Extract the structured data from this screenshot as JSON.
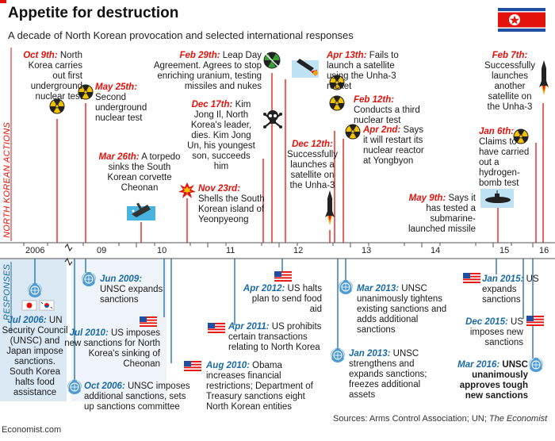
{
  "header": {
    "title": "Appetite for destruction",
    "subtitle": "A decade of North Korean provocation and selected international responses"
  },
  "side_labels": {
    "actions": "NORTH KOREAN ACTIONS",
    "responses": "RESPONSES"
  },
  "years": [
    "2006",
    "09",
    "10",
    "11",
    "12",
    "13",
    "14",
    "15",
    "16"
  ],
  "actions": [
    {
      "date": "Oct 9th:",
      "text": "North Korea carries out first underground nuclear test",
      "icon": "radiation-icon"
    },
    {
      "date": "May 25th:",
      "text": "Second underground nuclear test",
      "icon": "radiation-icon"
    },
    {
      "date": "Mar 26th:",
      "text": "A torpedo sinks the South Korean corvette Cheonan",
      "icon": "sinking-ship-icon"
    },
    {
      "date": "Nov 23rd:",
      "text": "Shells the South Korean island of Yeonpyeong",
      "icon": "explosion-icon"
    },
    {
      "date": "Feb 29th:",
      "text": "Leap Day Agreement. Agrees to stop enriching uranium, testing missiles and nukes",
      "icon": "crossed-radiation-icon"
    },
    {
      "date": "Dec 17th:",
      "text": "Kim Jong Il, North Korea's leader, dies. Kim Jong Un, his youngest son, succeeds him",
      "icon": "skull-icon"
    },
    {
      "date": "Apr 13th:",
      "text": "Fails to launch a satellite using the Unha-3 rocket",
      "icon": "failed-rocket-icon"
    },
    {
      "date": "Dec 12th:",
      "text": "Successfully launches a satellite on the Unha-3",
      "icon": "rocket-icon"
    },
    {
      "date": "Feb 12th:",
      "text": "Conducts a third nuclear test",
      "icon": "radiation-icon"
    },
    {
      "date": "Apr 2nd:",
      "text": "Says it will restart its nuclear reactor at Yongbyon",
      "icon": "radiation-icon"
    },
    {
      "date": "May 9th:",
      "text": "Says it has tested a submarine-launched missile",
      "icon": "submarine-icon"
    },
    {
      "date": "Jan 6th:",
      "text": "Claims to have carried out a hydrogen-bomb test",
      "icon": "radiation-icon"
    },
    {
      "date": "Feb 7th:",
      "text": "Successfully launches another satellite on the Unha-3",
      "icon": "rocket-icon"
    }
  ],
  "responses": [
    {
      "date": "Jul 2006:",
      "text": "UN Security Council (UNSC) and Japan impose sanctions. South Korea halts food assistance",
      "icon": "un-icon"
    },
    {
      "date": "Oct 2006:",
      "text": "UNSC imposes additional sanctions, sets up sanctions committee",
      "icon": "un-icon"
    },
    {
      "date": "Jun 2009:",
      "text": "UNSC expands sanctions",
      "icon": "un-icon"
    },
    {
      "date": "Jul 2010:",
      "text": "US imposes new sanctions for North Korea's sinking of Cheonan",
      "icon": "us-flag-icon"
    },
    {
      "date": "Aug 2010:",
      "text": "Obama increases financial restrictions; Department of Treasury sanctions eight North Korean entities",
      "icon": "us-flag-icon"
    },
    {
      "date": "Apr 2011:",
      "text": "US prohibits certain transactions relating to North Korea",
      "icon": "us-flag-icon"
    },
    {
      "date": "Apr 2012:",
      "text": "US halts plan to send food aid",
      "icon": "us-flag-icon"
    },
    {
      "date": "Mar 2013:",
      "text": "UNSC unanimously tightens existing sanctions and adds additional sanctions",
      "icon": "un-icon"
    },
    {
      "date": "Jan 2013:",
      "text": "UNSC strengthens and expands sanctions; freezes additional assets",
      "icon": "un-icon"
    },
    {
      "date": "Jan 2015:",
      "text": "US expands sanctions",
      "icon": "us-flag-icon"
    },
    {
      "date": "Dec 2015:",
      "text": "US imposes new sanctions",
      "icon": "us-flag-icon"
    },
    {
      "date": "Mar 2016:",
      "text": "UNSC unanimously approves tough new sanctions",
      "icon": "un-icon"
    }
  ],
  "footer": {
    "sources": "Sources: Arms Control Association; UN;",
    "sources_italic": "The Economist",
    "credit": "Economist.com"
  },
  "colors": {
    "accent_red": "#e3120b",
    "un_blue": "#1a6aa8",
    "band_blue": "#dbe9f4"
  }
}
